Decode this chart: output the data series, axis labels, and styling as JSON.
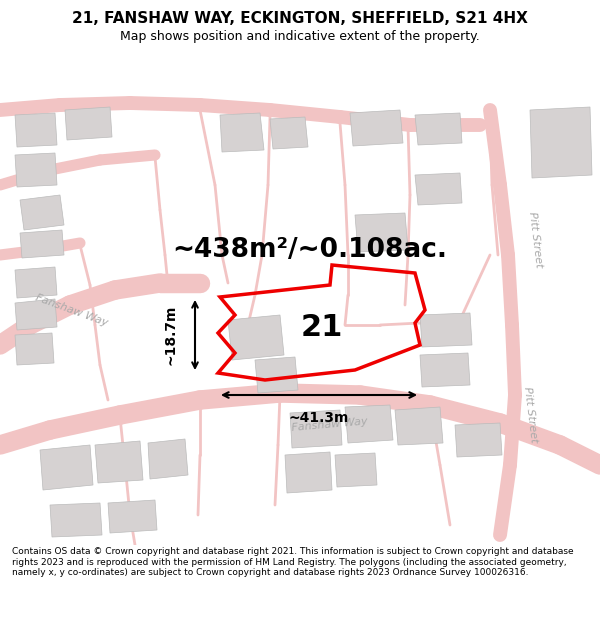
{
  "title": "21, FANSHAW WAY, ECKINGTON, SHEFFIELD, S21 4HX",
  "subtitle": "Map shows position and indicative extent of the property.",
  "footer": "Contains OS data © Crown copyright and database right 2021. This information is subject to Crown copyright and database rights 2023 and is reproduced with the permission of HM Land Registry. The polygons (including the associated geometry, namely x, y co-ordinates) are subject to Crown copyright and database rights 2023 Ordnance Survey 100026316.",
  "area_label": "~438m²/~0.108ac.",
  "width_label": "~41.3m",
  "height_label": "~18.7m",
  "number_label": "21",
  "map_bg": "#f7f6f6",
  "road_color": "#f2c4c4",
  "building_color": "#d6d2d2",
  "plot_color": "#ee0000",
  "title_fontsize": 11,
  "subtitle_fontsize": 9,
  "footer_fontsize": 6.5,
  "area_fontsize": 19,
  "number_fontsize": 22,
  "dim_fontsize": 10,
  "street_fontsize": 8
}
